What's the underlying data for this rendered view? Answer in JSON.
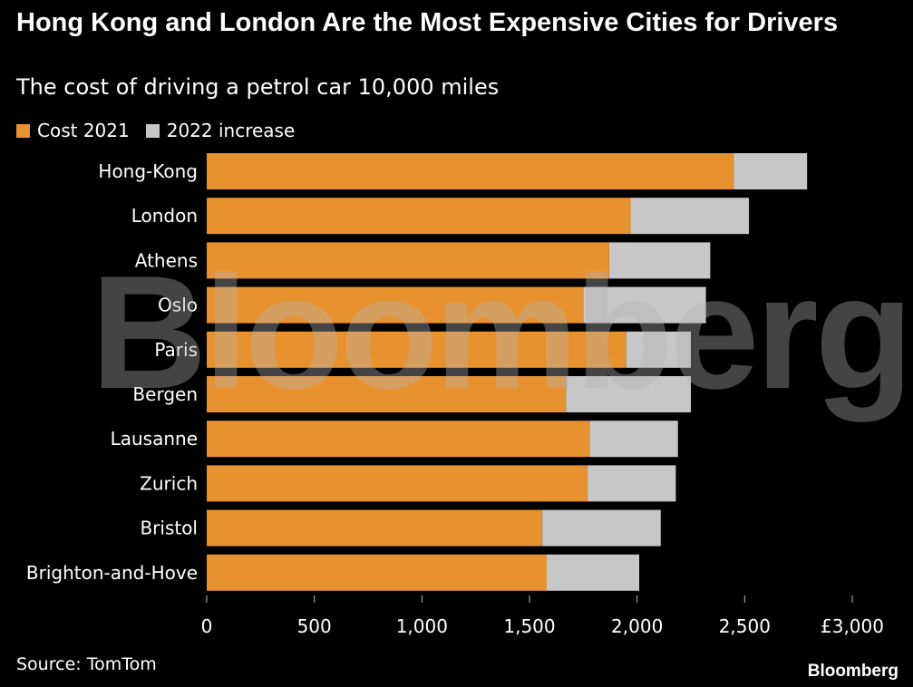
{
  "chart_data": {
    "type": "bar",
    "orientation": "horizontal",
    "stacked": true,
    "title": "Hong Kong and London Are the Most Expensive Cities for Drivers",
    "subtitle": "The cost of driving a petrol car 10,000 miles",
    "categories": [
      "Hong-Kong",
      "London",
      "Athens",
      "Oslo",
      "Paris",
      "Bergen",
      "Lausanne",
      "Zurich",
      "Bristol",
      "Brighton-and-Hove"
    ],
    "series": [
      {
        "name": "Cost 2021",
        "color": "#e8912f",
        "values": [
          2450,
          1970,
          1870,
          1750,
          1950,
          1670,
          1780,
          1770,
          1560,
          1580
        ]
      },
      {
        "name": "2022 increase",
        "color": "#c7c7c7",
        "values": [
          340,
          550,
          470,
          570,
          300,
          580,
          410,
          410,
          550,
          430
        ]
      }
    ],
    "xlim": [
      0,
      3000
    ],
    "xticks": [
      0,
      500,
      1000,
      1500,
      2000,
      2500,
      3000
    ],
    "xtick_labels": [
      "0",
      "500",
      "1,000",
      "1,500",
      "2,000",
      "2,500",
      "£3,000"
    ],
    "legend": "top-left"
  },
  "legend": {
    "items": [
      {
        "label": "Cost 2021",
        "color": "#e8912f"
      },
      {
        "label": "2022 increase",
        "color": "#c7c7c7"
      }
    ]
  },
  "footer": {
    "source": "Source: TomTom",
    "brand": "Bloomberg"
  },
  "watermark": "Bloomberg"
}
